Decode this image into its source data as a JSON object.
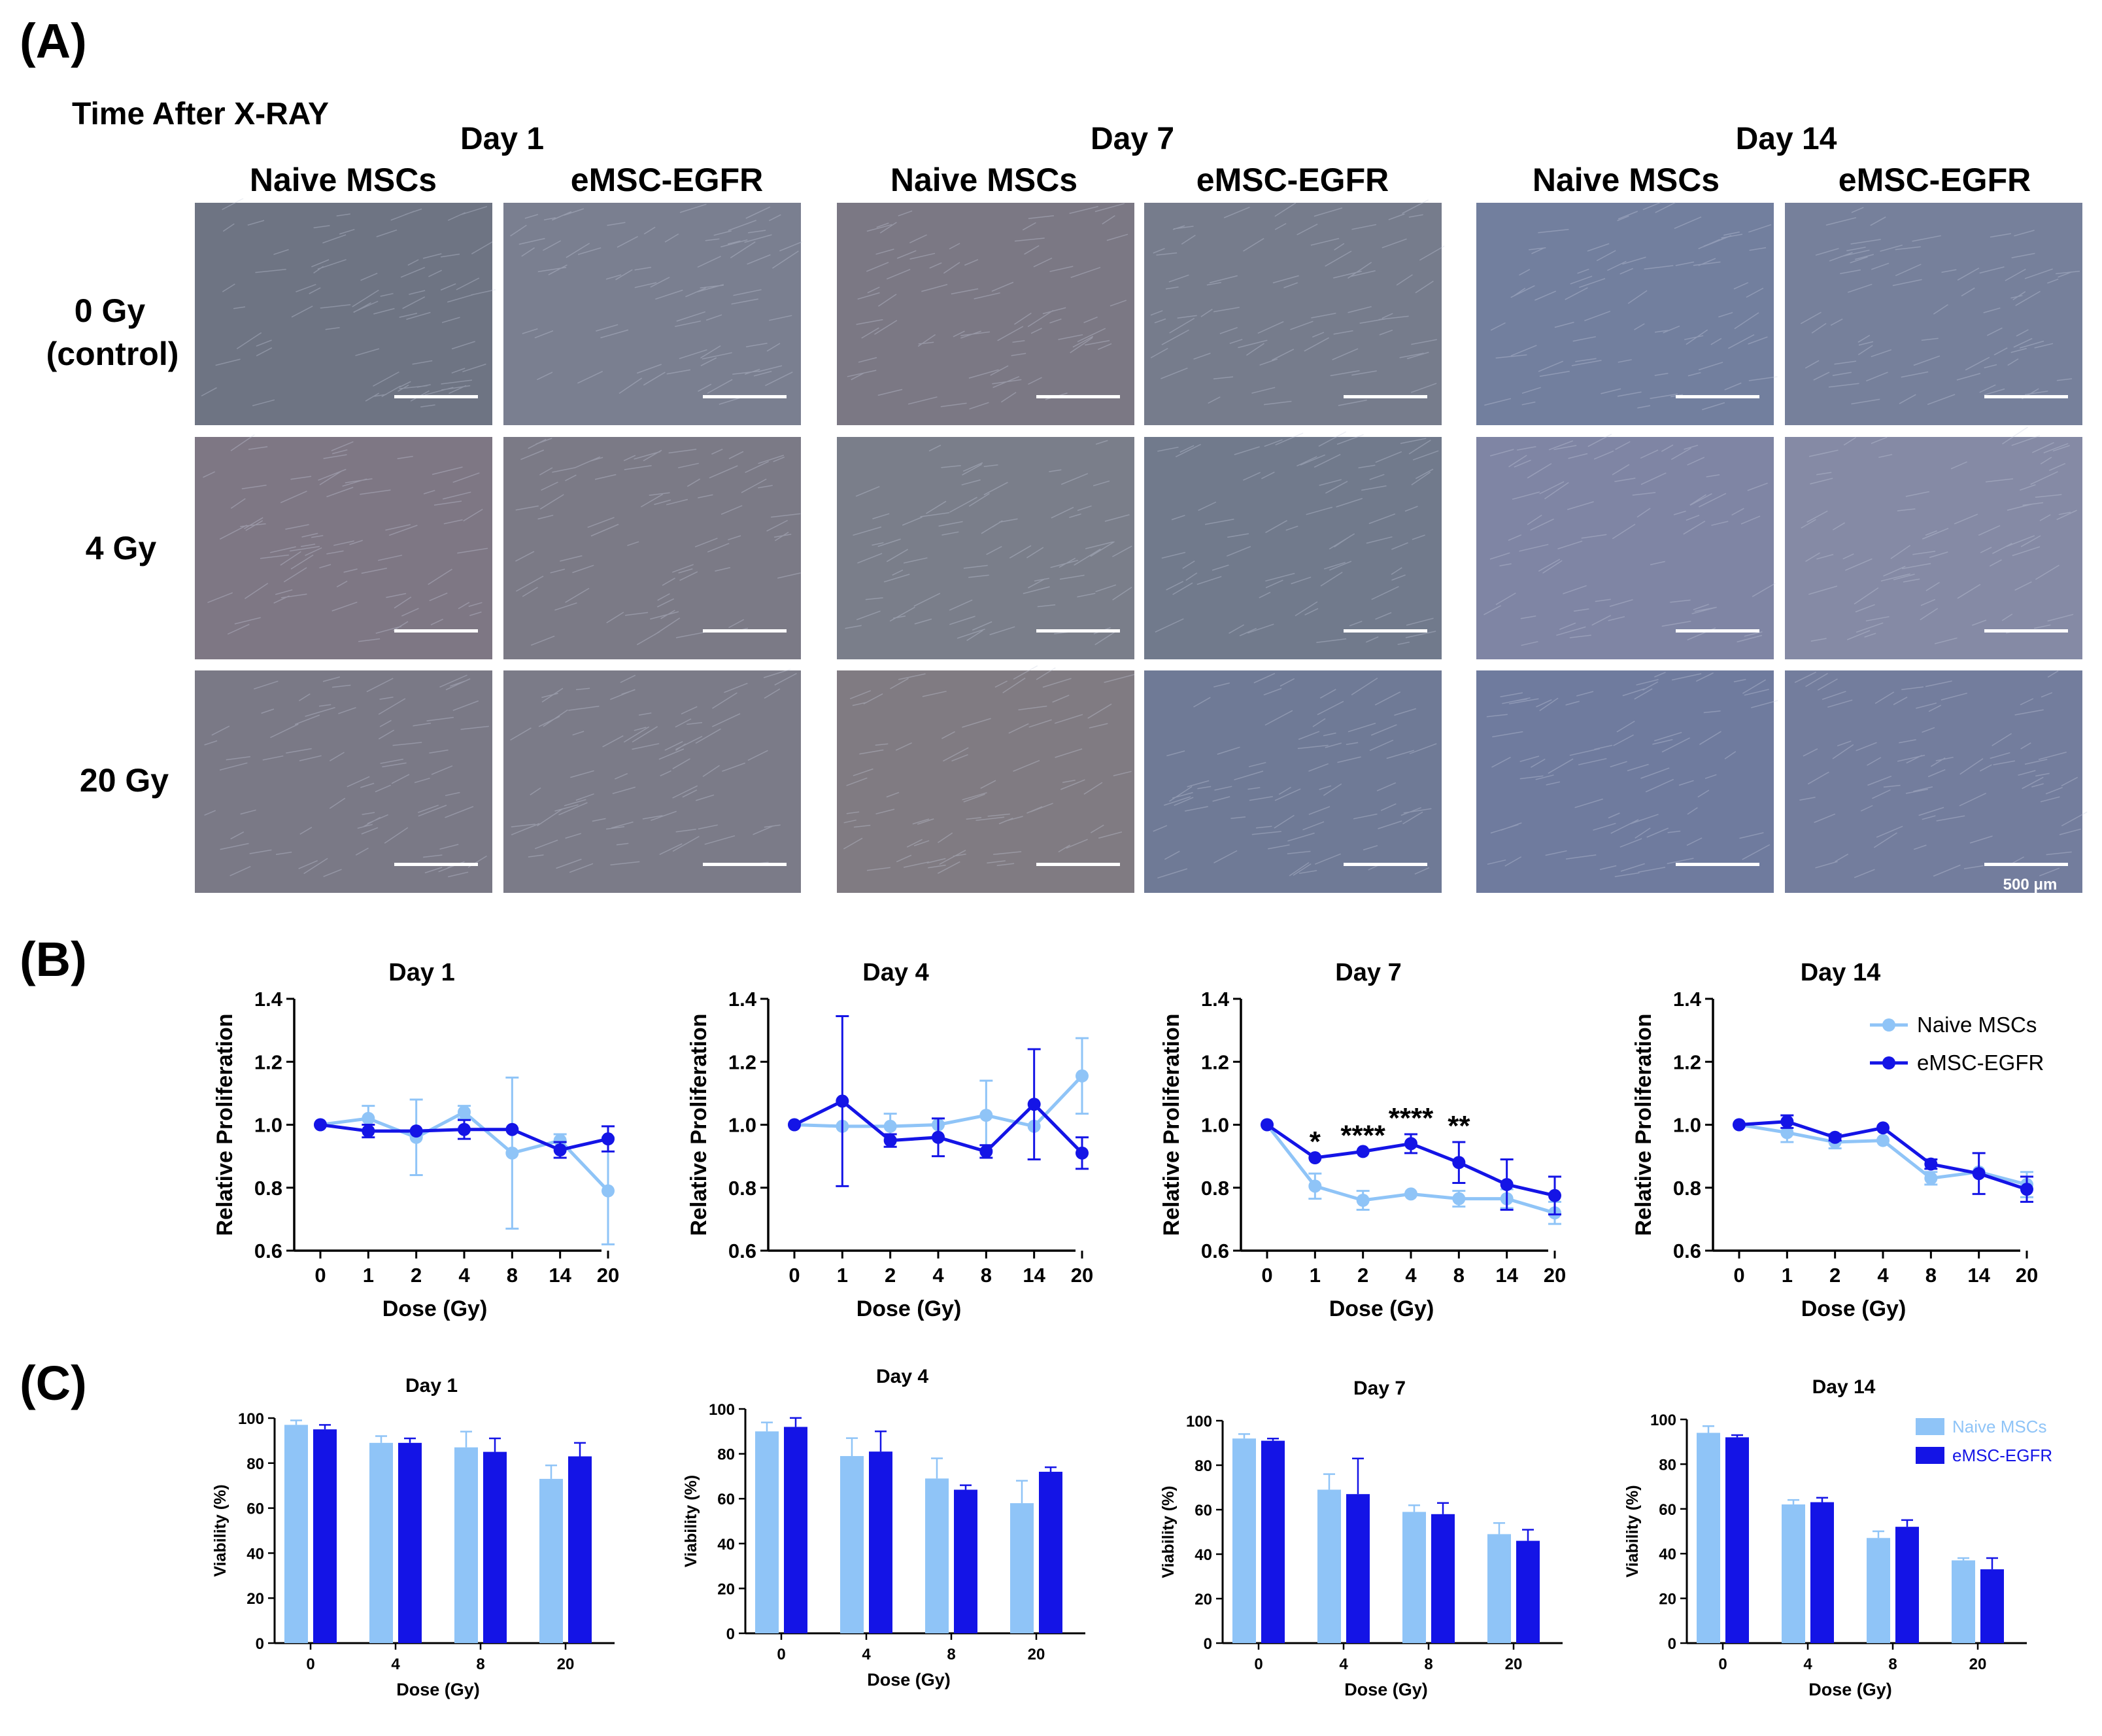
{
  "figure": {
    "panel_labels": {
      "a": "(A)",
      "b": "(B)",
      "c": "(C)"
    },
    "colors": {
      "naive": "#8fc4f7",
      "emsc": "#1414e6",
      "axis": "#000000"
    },
    "panel_a": {
      "header": "Time After X-RAY",
      "days": [
        "Day 1",
        "Day 7",
        "Day 14"
      ],
      "groups": [
        "Naive MSCs",
        "eMSC-EGFR"
      ],
      "dose_rows": [
        {
          "line1": "0 Gy",
          "line2": "(control)"
        },
        {
          "line1": "4 Gy",
          "line2": ""
        },
        {
          "line1": "20 Gy",
          "line2": ""
        }
      ],
      "scale_bar_label": "500 μm",
      "image_tints": [
        [
          "#6e7483",
          "#7a7f90",
          "#7b7884",
          "#767c8c",
          "#727f9e",
          "#76809b"
        ],
        [
          "#7e7784",
          "#7b7a86",
          "#7a7e8a",
          "#717a8c",
          "#7f85a4",
          "#858aa5"
        ],
        [
          "#7a7986",
          "#7b7b88",
          "#807b82",
          "#6f7a96",
          "#6f7b9e",
          "#737d9d"
        ]
      ]
    }
  },
  "chart_data": [
    {
      "type": "line",
      "panel": "B",
      "title": "Day 1",
      "xlabel": "Dose (Gy)",
      "ylabel": "Relative Proliferation",
      "categories": [
        "0",
        "1",
        "2",
        "4",
        "8",
        "14",
        "20"
      ],
      "ylim": [
        0.6,
        1.4
      ],
      "yticks": [
        "0.6",
        "0.8",
        "1.0",
        "1.2",
        "1.4"
      ],
      "series": [
        {
          "name": "Naive MSCs",
          "values": [
            1.0,
            1.02,
            0.96,
            1.04,
            0.91,
            0.95,
            0.79
          ],
          "errors": [
            0.0,
            0.04,
            0.12,
            0.02,
            0.24,
            0.02,
            0.17
          ]
        },
        {
          "name": "eMSC-EGFR",
          "values": [
            1.0,
            0.98,
            0.98,
            0.985,
            0.985,
            0.92,
            0.955
          ],
          "errors": [
            0.0,
            0.02,
            0.0,
            0.03,
            0.0,
            0.025,
            0.04
          ]
        }
      ],
      "annotations": []
    },
    {
      "type": "line",
      "panel": "B",
      "title": "Day 4",
      "xlabel": "Dose (Gy)",
      "ylabel": "Relative Proliferation",
      "categories": [
        "0",
        "1",
        "2",
        "4",
        "8",
        "14",
        "20"
      ],
      "ylim": [
        0.6,
        1.4
      ],
      "yticks": [
        "0.6",
        "0.8",
        "1.0",
        "1.2",
        "1.4"
      ],
      "series": [
        {
          "name": "Naive MSCs",
          "values": [
            1.0,
            0.995,
            0.995,
            1.0,
            1.03,
            0.995,
            1.155
          ],
          "errors": [
            0.0,
            0.0,
            0.04,
            0.0,
            0.11,
            0.0,
            0.12
          ]
        },
        {
          "name": "eMSC-EGFR",
          "values": [
            1.0,
            1.075,
            0.95,
            0.96,
            0.915,
            1.065,
            0.91
          ],
          "errors": [
            0.0,
            0.27,
            0.02,
            0.06,
            0.02,
            0.175,
            0.05
          ]
        }
      ],
      "annotations": []
    },
    {
      "type": "line",
      "panel": "B",
      "title": "Day 7",
      "xlabel": "Dose (Gy)",
      "ylabel": "Relative Proliferation",
      "categories": [
        "0",
        "1",
        "2",
        "4",
        "8",
        "14",
        "20"
      ],
      "ylim": [
        0.6,
        1.4
      ],
      "yticks": [
        "0.6",
        "0.8",
        "1.0",
        "1.2",
        "1.4"
      ],
      "series": [
        {
          "name": "Naive MSCs",
          "values": [
            1.0,
            0.805,
            0.76,
            0.78,
            0.765,
            0.765,
            0.72
          ],
          "errors": [
            0.0,
            0.04,
            0.03,
            0.0,
            0.025,
            0.03,
            0.035
          ]
        },
        {
          "name": "eMSC-EGFR",
          "values": [
            1.0,
            0.895,
            0.915,
            0.94,
            0.88,
            0.81,
            0.775
          ],
          "errors": [
            0.0,
            0.0,
            0.0,
            0.03,
            0.065,
            0.08,
            0.06
          ]
        }
      ],
      "annotations": [
        {
          "x": "1",
          "text": "*"
        },
        {
          "x": "2",
          "text": "****"
        },
        {
          "x": "4",
          "text": "****"
        },
        {
          "x": "8",
          "text": "**"
        }
      ]
    },
    {
      "type": "line",
      "panel": "B",
      "title": "Day 14",
      "xlabel": "Dose (Gy)",
      "ylabel": "Relative Proliferation",
      "categories": [
        "0",
        "1",
        "2",
        "4",
        "8",
        "14",
        "20"
      ],
      "ylim": [
        0.6,
        1.4
      ],
      "yticks": [
        "0.6",
        "0.8",
        "1.0",
        "1.2",
        "1.4"
      ],
      "legend": [
        "Naive MSCs",
        "eMSC-EGFR"
      ],
      "series": [
        {
          "name": "Naive MSCs",
          "values": [
            1.0,
            0.975,
            0.945,
            0.95,
            0.83,
            0.85,
            0.81
          ],
          "errors": [
            0.0,
            0.03,
            0.02,
            0.0,
            0.02,
            0.0,
            0.04
          ]
        },
        {
          "name": "eMSC-EGFR",
          "values": [
            1.0,
            1.01,
            0.96,
            0.99,
            0.875,
            0.845,
            0.795
          ],
          "errors": [
            0.0,
            0.02,
            0.01,
            0.0,
            0.015,
            0.065,
            0.04
          ]
        }
      ],
      "annotations": []
    },
    {
      "type": "bar",
      "panel": "C",
      "title": "Day 1",
      "xlabel": "Dose (Gy)",
      "ylabel": "Viability (%)",
      "categories": [
        "0",
        "4",
        "8",
        "20"
      ],
      "ylim": [
        0,
        100
      ],
      "yticks": [
        "0",
        "20",
        "40",
        "60",
        "80",
        "100"
      ],
      "series": [
        {
          "name": "Naive MSCs",
          "values": [
            97,
            89,
            87,
            73
          ],
          "errors": [
            2,
            3,
            7,
            6
          ]
        },
        {
          "name": "eMSC-EGFR",
          "values": [
            95,
            89,
            85,
            83
          ],
          "errors": [
            2,
            2,
            6,
            6
          ]
        }
      ]
    },
    {
      "type": "bar",
      "panel": "C",
      "title": "Day 4",
      "xlabel": "Dose (Gy)",
      "ylabel": "Viability (%)",
      "categories": [
        "0",
        "4",
        "8",
        "20"
      ],
      "ylim": [
        0,
        100
      ],
      "yticks": [
        "0",
        "20",
        "40",
        "60",
        "80",
        "100"
      ],
      "series": [
        {
          "name": "Naive MSCs",
          "values": [
            90,
            79,
            69,
            58
          ],
          "errors": [
            4,
            8,
            9,
            10
          ]
        },
        {
          "name": "eMSC-EGFR",
          "values": [
            92,
            81,
            64,
            72
          ],
          "errors": [
            4,
            9,
            2,
            2
          ]
        }
      ]
    },
    {
      "type": "bar",
      "panel": "C",
      "title": "Day 7",
      "xlabel": "Dose (Gy)",
      "ylabel": "Viability (%)",
      "categories": [
        "0",
        "4",
        "8",
        "20"
      ],
      "ylim": [
        0,
        100
      ],
      "yticks": [
        "0",
        "20",
        "40",
        "60",
        "80",
        "100"
      ],
      "series": [
        {
          "name": "Naive MSCs",
          "values": [
            92,
            69,
            59,
            49
          ],
          "errors": [
            2,
            7,
            3,
            5
          ]
        },
        {
          "name": "eMSC-EGFR",
          "values": [
            91,
            67,
            58,
            46
          ],
          "errors": [
            1,
            16,
            5,
            5
          ]
        }
      ]
    },
    {
      "type": "bar",
      "panel": "C",
      "title": "Day 14",
      "xlabel": "Dose (Gy)",
      "ylabel": "Viability (%)",
      "categories": [
        "0",
        "4",
        "8",
        "20"
      ],
      "ylim": [
        0,
        100
      ],
      "yticks": [
        "0",
        "20",
        "40",
        "60",
        "80",
        "100"
      ],
      "legend": [
        "Naive MSCs",
        "eMSC-EGFR"
      ],
      "series": [
        {
          "name": "Naive MSCs",
          "values": [
            94,
            62,
            47,
            37
          ],
          "errors": [
            3,
            2,
            3,
            1
          ]
        },
        {
          "name": "eMSC-EGFR",
          "values": [
            92,
            63,
            52,
            33
          ],
          "errors": [
            1,
            2,
            3,
            5
          ]
        }
      ]
    }
  ]
}
